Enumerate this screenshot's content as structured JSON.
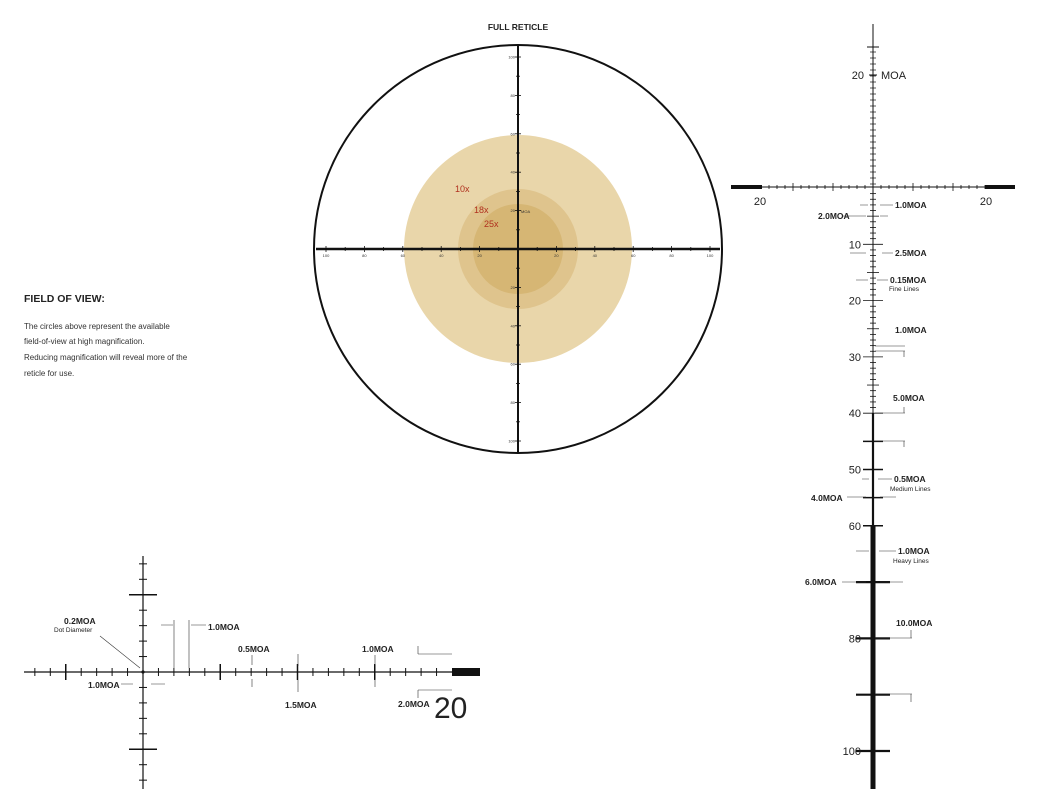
{
  "full_reticle": {
    "title": "FULL RETICLE",
    "scale_labels": [
      "100",
      "80",
      "60",
      "40",
      "20"
    ],
    "center_label": "MOA",
    "magnifications": [
      "10x",
      "18x",
      "25x"
    ]
  },
  "field_of_view": {
    "heading": "FIELD OF VIEW:",
    "lines": [
      "The circles above represent the available",
      "field-of-view at high magnification.",
      "Reducing magnification will reveal more of the",
      "reticle for use."
    ]
  },
  "vertical_detail": {
    "top_label": "20",
    "unit": "MOA",
    "horizontal_labels": [
      "20",
      "20"
    ],
    "scale_labels": [
      "10",
      "20",
      "30",
      "40",
      "50",
      "60",
      "80",
      "100"
    ],
    "callouts": [
      {
        "label": "1.0MOA"
      },
      {
        "label": "2.0MOA"
      },
      {
        "label": "2.5MOA"
      },
      {
        "label": "0.15MOA",
        "note": "Fine Lines"
      },
      {
        "label": "1.0MOA"
      },
      {
        "label": "5.0MOA"
      },
      {
        "label": "0.5MOA",
        "note": "Medium Lines"
      },
      {
        "label": "4.0MOA"
      },
      {
        "label": "1.0MOA",
        "note": "Heavy Lines"
      },
      {
        "label": "6.0MOA"
      },
      {
        "label": "10.0MOA"
      }
    ]
  },
  "horizontal_detail": {
    "callouts": [
      {
        "label": "0.2MOA",
        "note": "Dot Diameter"
      },
      {
        "label": "1.0MOA"
      },
      {
        "label": "1.0MOA"
      },
      {
        "label": "0.5MOA"
      },
      {
        "label": "1.0MOA"
      },
      {
        "label": "1.5MOA"
      },
      {
        "label": "2.0MOA"
      }
    ],
    "end_label": "20"
  }
}
